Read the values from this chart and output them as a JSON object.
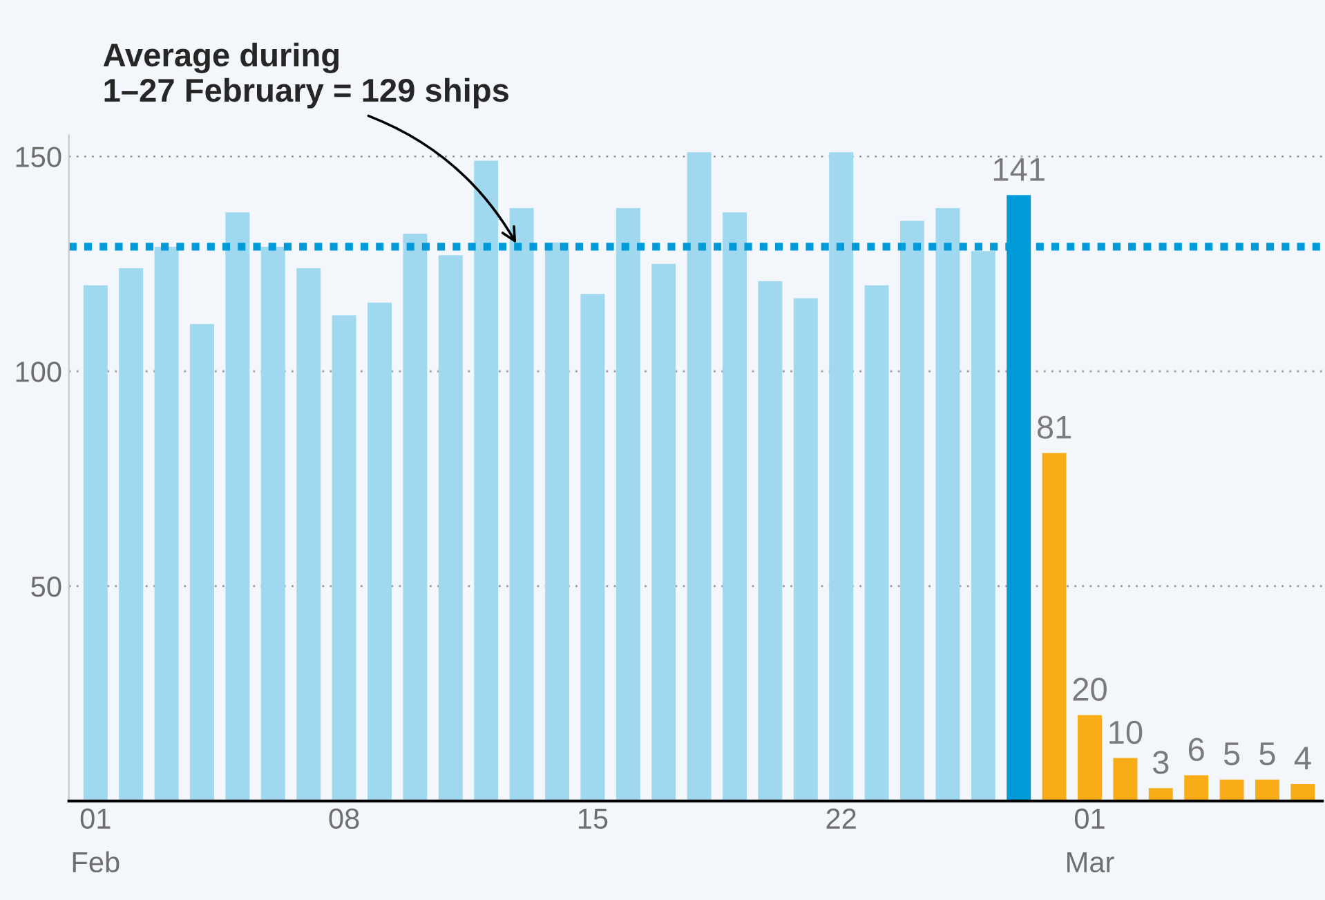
{
  "chart_data": {
    "type": "bar",
    "categories": [
      "01\nFeb",
      null,
      null,
      null,
      null,
      null,
      null,
      "08",
      null,
      null,
      null,
      null,
      null,
      null,
      "15",
      null,
      null,
      null,
      null,
      null,
      null,
      "22",
      null,
      null,
      null,
      null,
      null,
      null,
      "01\nMar",
      null,
      null,
      null,
      null,
      null,
      null
    ],
    "values": [
      120,
      124,
      129,
      111,
      137,
      129,
      124,
      113,
      116,
      132,
      127,
      149,
      138,
      130,
      118,
      138,
      125,
      151,
      137,
      121,
      117,
      151,
      120,
      135,
      138,
      128,
      141,
      81,
      20,
      10,
      3,
      6,
      5,
      5,
      4
    ],
    "colors": [
      "#a0d8f0",
      "#a0d8f0",
      "#a0d8f0",
      "#a0d8f0",
      "#a0d8f0",
      "#a0d8f0",
      "#a0d8f0",
      "#a0d8f0",
      "#a0d8f0",
      "#a0d8f0",
      "#a0d8f0",
      "#a0d8f0",
      "#a0d8f0",
      "#a0d8f0",
      "#a0d8f0",
      "#a0d8f0",
      "#a0d8f0",
      "#a0d8f0",
      "#a0d8f0",
      "#a0d8f0",
      "#a0d8f0",
      "#a0d8f0",
      "#a0d8f0",
      "#a0d8f0",
      "#a0d8f0",
      "#a0d8f0",
      "#009ad8",
      "#f8ac18",
      "#f8ac18",
      "#f8ac18",
      "#f8ac18",
      "#f8ac18",
      "#f8ac18",
      "#f8ac18",
      "#f8ac18"
    ],
    "value_labels": [
      null,
      null,
      null,
      null,
      null,
      null,
      null,
      null,
      null,
      null,
      null,
      null,
      null,
      null,
      null,
      null,
      null,
      null,
      null,
      null,
      null,
      null,
      null,
      null,
      null,
      null,
      "141",
      "81",
      "20",
      "10",
      "3",
      "6",
      "5",
      "5",
      "4"
    ],
    "ylim": [
      0,
      155
    ],
    "yticks": [
      50,
      100,
      150
    ],
    "grid": "y",
    "ref_lines": [
      {
        "axis": "y",
        "value": 129,
        "label": "Average during\n1–27 February = 129 ships",
        "color": "#009ad8",
        "line_style": "dotted"
      }
    ]
  }
}
